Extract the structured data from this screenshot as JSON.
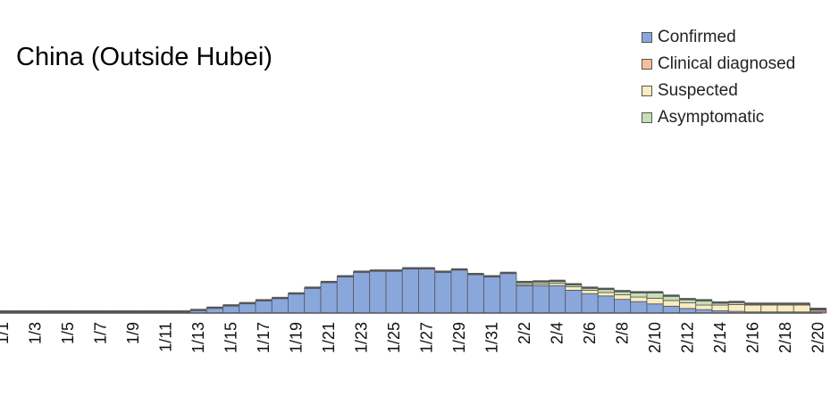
{
  "chart_data": {
    "type": "bar",
    "stacked": true,
    "title": "China (Outside Hubei)",
    "xlabel": "",
    "ylabel": "",
    "grid": false,
    "legend_position": "top-right",
    "categories": [
      "1/1",
      "1/2",
      "1/3",
      "1/4",
      "1/5",
      "1/6",
      "1/7",
      "1/8",
      "1/9",
      "1/10",
      "1/11",
      "1/12",
      "1/13",
      "1/14",
      "1/15",
      "1/16",
      "1/17",
      "1/18",
      "1/19",
      "1/20",
      "1/21",
      "1/22",
      "1/23",
      "1/24",
      "1/25",
      "1/26",
      "1/27",
      "1/28",
      "1/29",
      "1/30",
      "1/31",
      "2/1",
      "2/2",
      "2/3",
      "2/4",
      "2/5",
      "2/6",
      "2/7",
      "2/8",
      "2/9",
      "2/10",
      "2/11",
      "2/12",
      "2/13",
      "2/14",
      "2/15",
      "2/16",
      "2/17",
      "2/18",
      "2/19",
      "2/20"
    ],
    "tick_labels": [
      "1/1",
      "1/3",
      "1/5",
      "1/7",
      "1/9",
      "1/11",
      "1/13",
      "1/15",
      "1/17",
      "1/19",
      "1/21",
      "1/23",
      "1/25",
      "1/27",
      "1/29",
      "1/31",
      "2/2",
      "2/4",
      "2/6",
      "2/8",
      "2/10",
      "2/12",
      "2/14",
      "2/16",
      "2/18",
      "2/20"
    ],
    "ylim": [
      0,
      60
    ],
    "series": [
      {
        "name": "Confirmed",
        "color": "#8aa7dc",
        "values": [
          1.2,
          1.2,
          1.2,
          1.2,
          1.2,
          1.2,
          1.2,
          1.2,
          1.2,
          1.2,
          1.2,
          1.2,
          2.5,
          4.5,
          6.5,
          8.5,
          11,
          13,
          17,
          22,
          27,
          32,
          36,
          37,
          37,
          39,
          39,
          36,
          38,
          34,
          32,
          35,
          24,
          24,
          24,
          20,
          17,
          15,
          12,
          10,
          8,
          6,
          4,
          3,
          2,
          1.5,
          1,
          1,
          1,
          1,
          1
        ]
      },
      {
        "name": "Clinical diagnosed",
        "color": "#f4c09a",
        "values": [
          0,
          0,
          0,
          0,
          0,
          0,
          0,
          0,
          0,
          0,
          0,
          0,
          0,
          0,
          0,
          0,
          0,
          0,
          0,
          0,
          0,
          0,
          0,
          0,
          0,
          0,
          0,
          0,
          0,
          0,
          0,
          0,
          0,
          0,
          0,
          0,
          0,
          0,
          0,
          0,
          0,
          0,
          0,
          0,
          0,
          0,
          0,
          0,
          0,
          0,
          1.5
        ]
      },
      {
        "name": "Suspected",
        "color": "#f8ecc0",
        "values": [
          0,
          0,
          0,
          0,
          0,
          0,
          0,
          0,
          0,
          0,
          0,
          0,
          0,
          0,
          0,
          0,
          0,
          0,
          0,
          0,
          0,
          0,
          0,
          0,
          0,
          0,
          0,
          0,
          0,
          0,
          0,
          0,
          1,
          1.5,
          2,
          3,
          3,
          3,
          4,
          4,
          5,
          5,
          5,
          4,
          5,
          6,
          6,
          6,
          6,
          6,
          1
        ]
      },
      {
        "name": "Asymptomatic",
        "color": "#c5e0b4",
        "values": [
          0,
          0,
          0,
          0,
          0,
          0,
          0,
          0,
          0,
          0,
          0,
          0,
          0,
          0,
          0,
          0,
          0,
          0,
          0,
          0,
          0,
          0,
          0,
          0,
          0,
          0,
          0,
          0,
          0,
          0,
          0,
          0,
          2,
          2,
          2,
          2,
          2,
          3,
          3,
          4,
          5,
          4,
          3,
          4,
          2,
          2,
          1,
          1,
          1,
          1,
          0
        ]
      }
    ]
  }
}
